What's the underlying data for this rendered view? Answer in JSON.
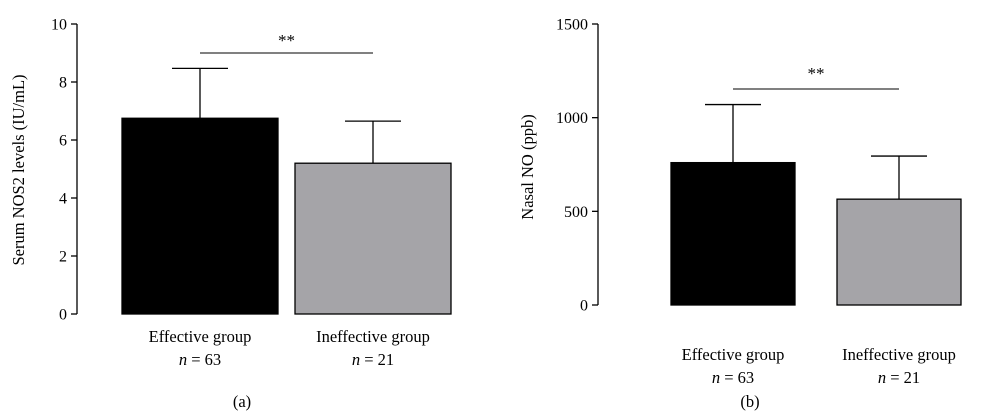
{
  "chart_data": [
    {
      "type": "bar",
      "panel_label": "(a)",
      "ylabel": "Serum NOS2 levels (IU/mL)",
      "ylim": [
        0,
        10
      ],
      "yticks": [
        "0",
        "2",
        "4",
        "6",
        "8",
        "10"
      ],
      "ytick_values": [
        0,
        2,
        4,
        6,
        8,
        10
      ],
      "categories": [
        "Effective group",
        "Ineffective group"
      ],
      "n_labels": [
        {
          "symbol": "n",
          "rest": " = 63"
        },
        {
          "symbol": "n",
          "rest": " = 21"
        }
      ],
      "values": [
        6.75,
        5.2
      ],
      "errors": [
        1.72,
        1.45
      ],
      "colors": [
        "#000000",
        "#a5a4a8"
      ],
      "significance": "**"
    },
    {
      "type": "bar",
      "panel_label": "(b)",
      "ylabel": "Nasal NO (ppb)",
      "ylim": [
        0,
        1500
      ],
      "yticks": [
        "0",
        "500",
        "1000",
        "1500"
      ],
      "ytick_values": [
        0,
        500,
        1000,
        1500
      ],
      "categories": [
        "Effective group",
        "Ineffective group"
      ],
      "n_labels": [
        {
          "symbol": "n",
          "rest": " = 63"
        },
        {
          "symbol": "n",
          "rest": " = 21"
        }
      ],
      "values": [
        760,
        565
      ],
      "errors": [
        310,
        230
      ],
      "colors": [
        "#000000",
        "#a5a4a8"
      ],
      "significance": "**"
    }
  ]
}
